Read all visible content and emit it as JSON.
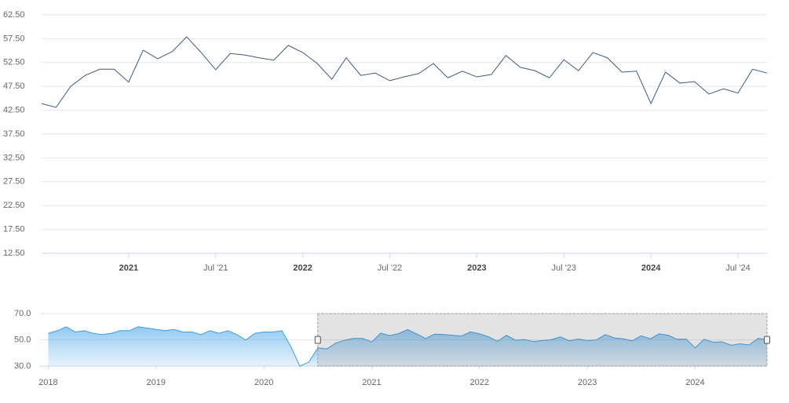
{
  "chart_data": [
    {
      "type": "line",
      "x": [
        "2020-07",
        "2020-08",
        "2020-09",
        "2020-10",
        "2020-11",
        "2020-12",
        "2021-01",
        "2021-02",
        "2021-03",
        "2021-04",
        "2021-05",
        "2021-06",
        "2021-07",
        "2021-08",
        "2021-09",
        "2021-10",
        "2021-11",
        "2021-12",
        "2022-01",
        "2022-02",
        "2022-03",
        "2022-04",
        "2022-05",
        "2022-06",
        "2022-07",
        "2022-08",
        "2022-09",
        "2022-10",
        "2022-11",
        "2022-12",
        "2023-01",
        "2023-02",
        "2023-03",
        "2023-04",
        "2023-05",
        "2023-06",
        "2023-07",
        "2023-08",
        "2023-09",
        "2023-10",
        "2023-11",
        "2023-12",
        "2024-01",
        "2024-02",
        "2024-03",
        "2024-04",
        "2024-05",
        "2024-06",
        "2024-07",
        "2024-08",
        "2024-09"
      ],
      "series": [
        {
          "color": "#3d5a80",
          "values": [
            43.9,
            43.1,
            47.5,
            49.8,
            51.1,
            51.1,
            48.4,
            55.1,
            53.3,
            54.8,
            57.9,
            54.6,
            51.0,
            54.4,
            54.1,
            53.5,
            53.0,
            56.1,
            54.6,
            52.3,
            49.0,
            53.5,
            49.8,
            50.3,
            48.7,
            49.5,
            50.2,
            52.3,
            49.3,
            50.7,
            49.5,
            50.0,
            54.0,
            51.5,
            50.8,
            49.3,
            53.1,
            50.8,
            54.6,
            53.5,
            50.5,
            50.7,
            43.9,
            50.5,
            48.2,
            48.5,
            45.9,
            47.0,
            46.1,
            51.1,
            50.3
          ]
        }
      ],
      "xlim": [
        "2020-07",
        "2024-09"
      ],
      "xticks": [
        {
          "value": "2021-01",
          "label": "2021"
        },
        {
          "value": "2021-07",
          "label": "Jul '21"
        },
        {
          "value": "2022-01",
          "label": "2022"
        },
        {
          "value": "2022-07",
          "label": "Jul '22"
        },
        {
          "value": "2023-01",
          "label": "2023"
        },
        {
          "value": "2023-07",
          "label": "Jul '23"
        },
        {
          "value": "2024-01",
          "label": "2024"
        },
        {
          "value": "2024-07",
          "label": "Jul '24"
        }
      ],
      "ylim": [
        12.5,
        62.5
      ],
      "yticks": [
        {
          "value": 12.5,
          "label": "12.50"
        },
        {
          "value": 17.5,
          "label": "17.50"
        },
        {
          "value": 22.5,
          "label": "22.50"
        },
        {
          "value": 27.5,
          "label": "27.50"
        },
        {
          "value": 32.5,
          "label": "32.50"
        },
        {
          "value": 37.5,
          "label": "37.50"
        },
        {
          "value": 42.5,
          "label": "42.50"
        },
        {
          "value": 47.5,
          "label": "47.50"
        },
        {
          "value": 52.5,
          "label": "52.50"
        },
        {
          "value": 57.5,
          "label": "57.50"
        },
        {
          "value": 62.5,
          "label": "62.50"
        }
      ],
      "grid": true
    },
    {
      "type": "area",
      "x": [
        "2018-01",
        "2018-02",
        "2018-03",
        "2018-04",
        "2018-05",
        "2018-06",
        "2018-07",
        "2018-08",
        "2018-09",
        "2018-10",
        "2018-11",
        "2018-12",
        "2019-01",
        "2019-02",
        "2019-03",
        "2019-04",
        "2019-05",
        "2019-06",
        "2019-07",
        "2019-08",
        "2019-09",
        "2019-10",
        "2019-11",
        "2019-12",
        "2020-01",
        "2020-02",
        "2020-03",
        "2020-04",
        "2020-05",
        "2020-06"
      ],
      "series": [
        {
          "color": "#3a9ee6",
          "values": [
            55,
            57,
            60,
            56,
            57,
            55,
            54,
            55,
            57,
            57,
            60,
            59,
            58,
            57,
            58,
            56,
            56,
            54,
            57,
            55,
            57,
            54,
            50,
            55,
            56,
            56,
            57,
            45,
            30,
            33
          ]
        }
      ],
      "xlim": [
        "2017-12",
        "2024-09"
      ],
      "xticks": [
        {
          "value": "2018-01",
          "label": "2018"
        },
        {
          "value": "2019-01",
          "label": "2019"
        },
        {
          "value": "2020-01",
          "label": "2020"
        },
        {
          "value": "2021-01",
          "label": "2021"
        },
        {
          "value": "2022-01",
          "label": "2022"
        },
        {
          "value": "2023-01",
          "label": "2023"
        },
        {
          "value": "2024-01",
          "label": "2024"
        }
      ],
      "ylim": [
        30,
        70
      ],
      "yticks": [
        {
          "value": 30,
          "label": "30.0"
        },
        {
          "value": 50,
          "label": "50.0"
        },
        {
          "value": 70,
          "label": "70.0"
        }
      ],
      "grid": true
    }
  ]
}
